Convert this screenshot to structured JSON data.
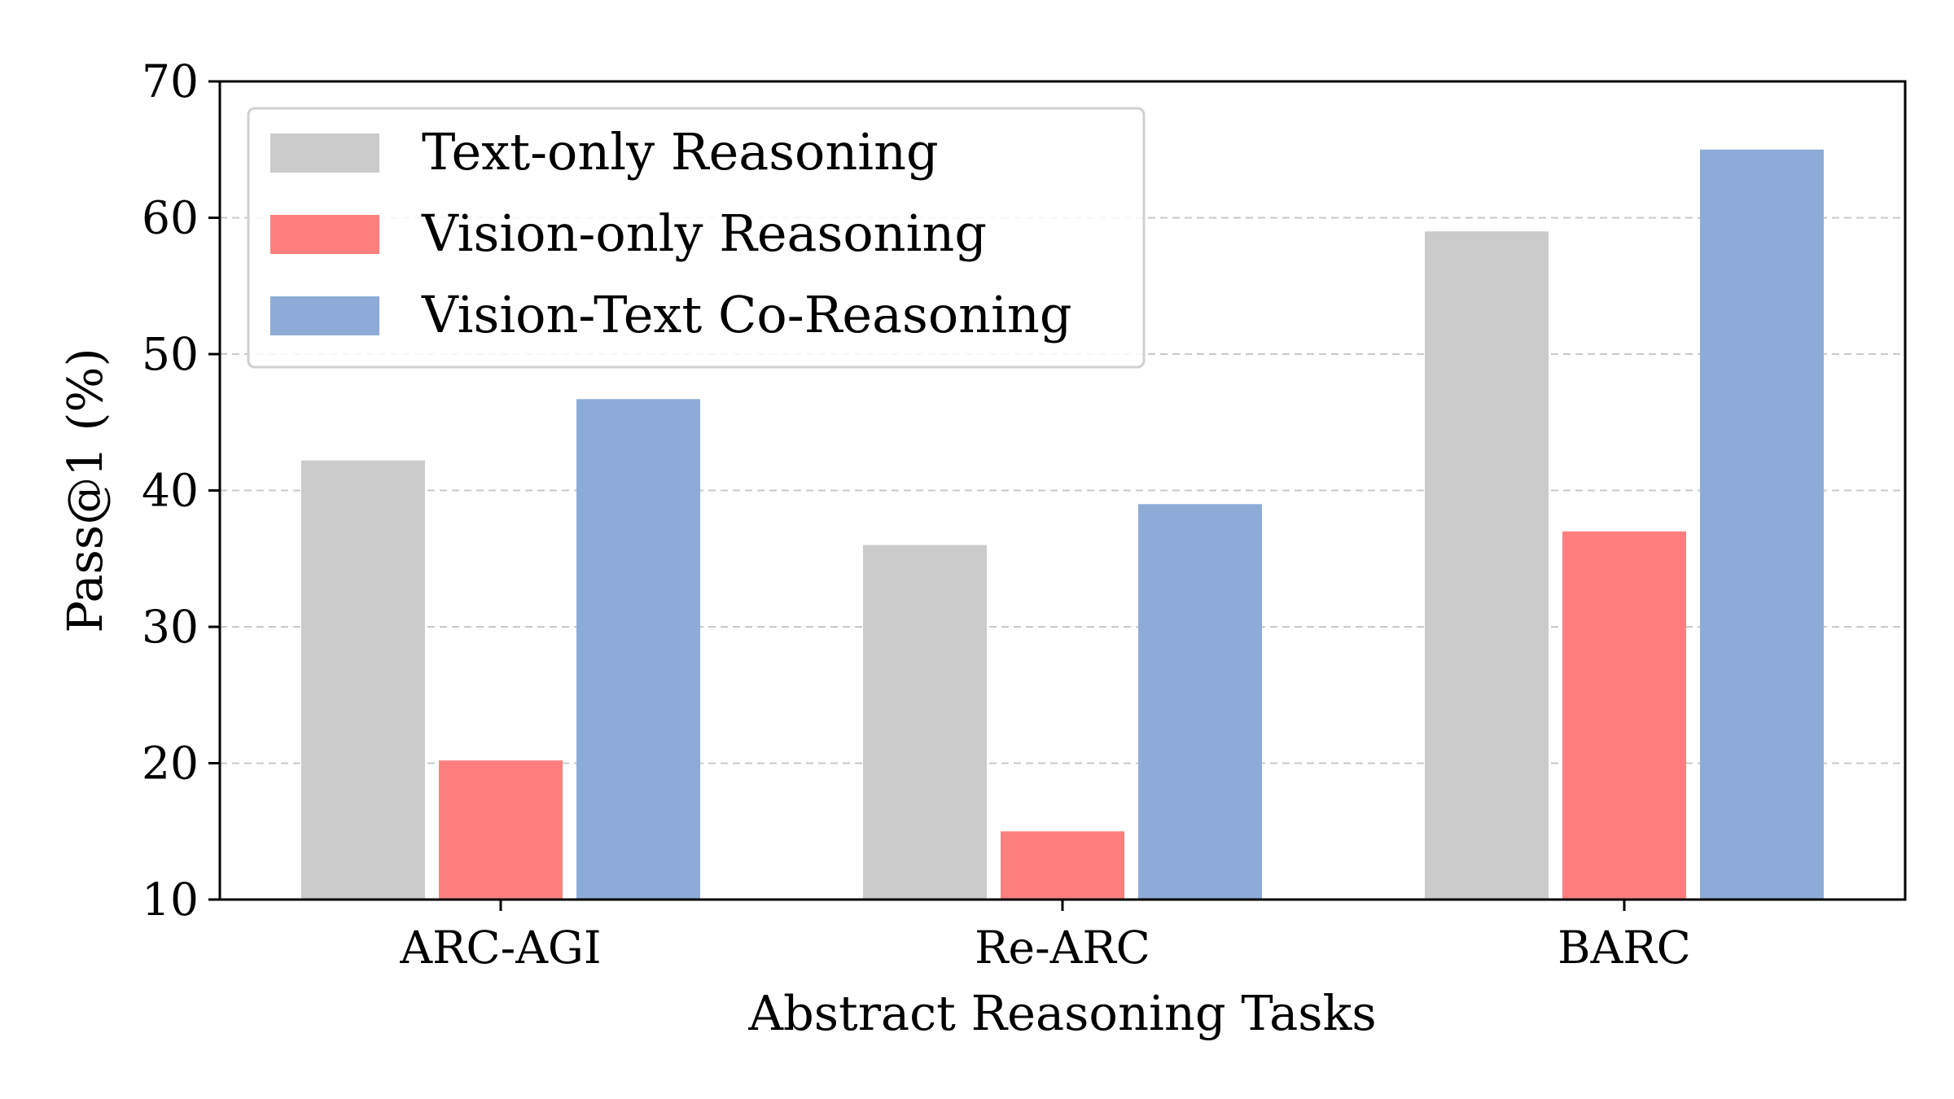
{
  "chart_data": {
    "type": "bar",
    "title": "",
    "xlabel": "Abstract Reasoning Tasks",
    "ylabel": "Pass@1 (%)",
    "categories": [
      "ARC-AGI",
      "Re-ARC",
      "BARC"
    ],
    "series": [
      {
        "name": "Text-only Reasoning",
        "color": "#cbcbcb",
        "values": [
          42.2,
          36.0,
          59.0
        ]
      },
      {
        "name": "Vision-only Reasoning",
        "color": "#ff7f7f",
        "values": [
          20.2,
          15.0,
          37.0
        ]
      },
      {
        "name": "Vision-Text Co-Reasoning",
        "color": "#8eabd8",
        "values": [
          46.7,
          39.0,
          65.0
        ]
      }
    ],
    "ylim": [
      10,
      70
    ],
    "yticks": [
      10,
      20,
      30,
      40,
      50,
      60,
      70
    ],
    "grid": "y-dashed",
    "legend_position": "top-left"
  }
}
